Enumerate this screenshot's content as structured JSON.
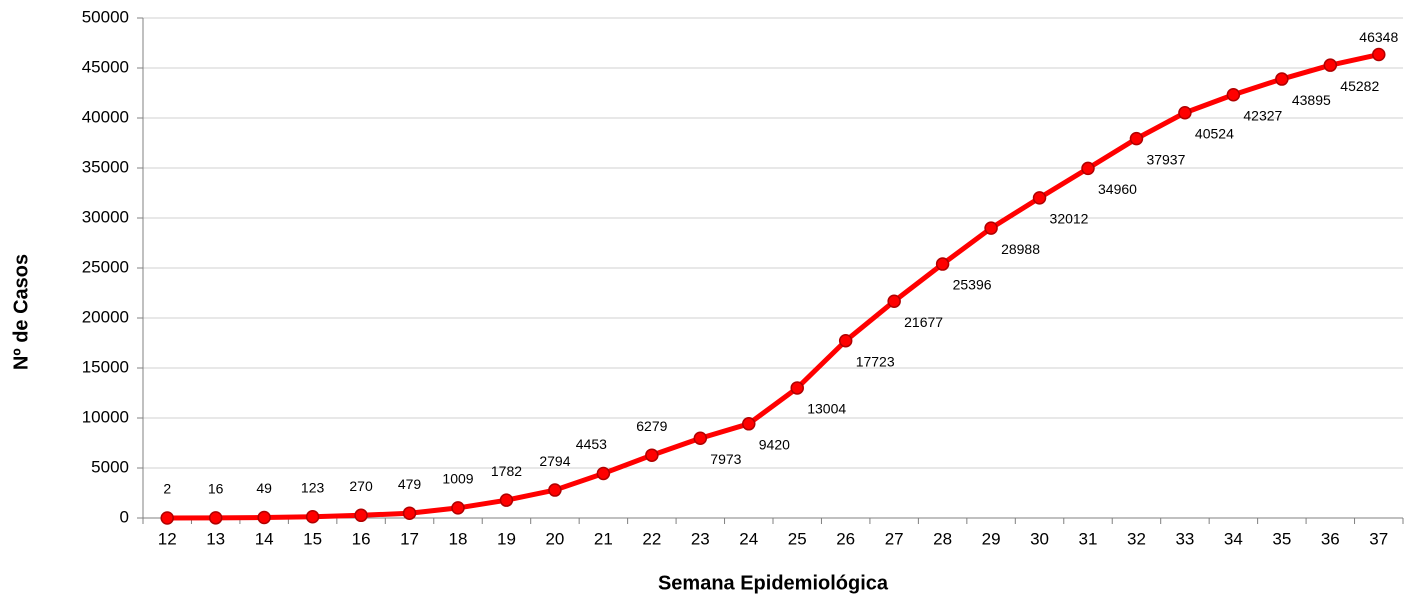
{
  "chart_data": {
    "type": "line",
    "x_label": "Semana Epidemiológica",
    "y_label": "Nº de Casos",
    "categories": [
      "12",
      "13",
      "14",
      "15",
      "16",
      "17",
      "18",
      "19",
      "20",
      "21",
      "22",
      "23",
      "24",
      "25",
      "26",
      "27",
      "28",
      "29",
      "30",
      "31",
      "32",
      "33",
      "34",
      "35",
      "36",
      "37"
    ],
    "series": [
      {
        "name": "Casos",
        "color": "#ff0000",
        "values": [
          2,
          16,
          49,
          123,
          270,
          479,
          1009,
          1782,
          2794,
          4453,
          6279,
          7973,
          9420,
          13004,
          17723,
          21677,
          25396,
          28988,
          32012,
          34960,
          37937,
          40524,
          42327,
          43895,
          45282,
          46348
        ]
      }
    ],
    "ylim": [
      0,
      50000
    ],
    "yticks": [
      0,
      5000,
      10000,
      15000,
      20000,
      25000,
      30000,
      35000,
      40000,
      45000,
      50000
    ],
    "grid": true
  }
}
